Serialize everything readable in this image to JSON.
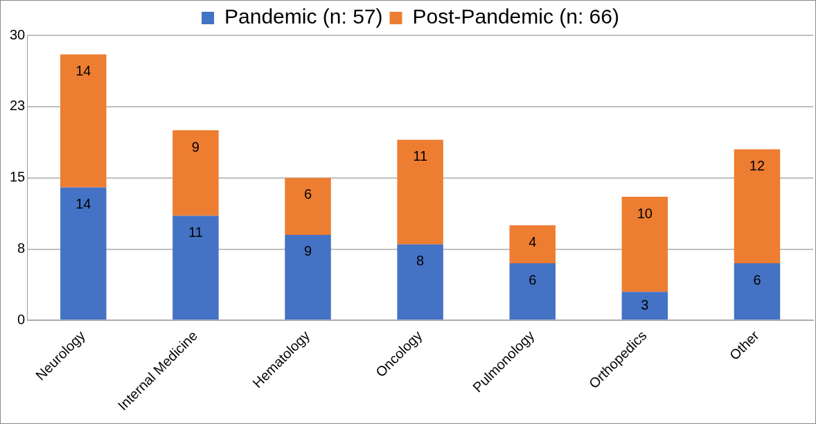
{
  "chart_data": {
    "type": "bar",
    "stacked": true,
    "categories": [
      "Neurology",
      "Internal Medicine",
      "Hematology",
      "Oncology",
      "Pulmonology",
      "Orthopedics",
      "Other"
    ],
    "series": [
      {
        "name": "Pandemic (n: 57)",
        "color": "#4472c4",
        "values": [
          14,
          11,
          9,
          8,
          6,
          3,
          6
        ]
      },
      {
        "name": "Post-Pandemic (n: 66)",
        "color": "#ed7d31",
        "values": [
          14,
          9,
          6,
          11,
          4,
          10,
          12
        ]
      }
    ],
    "ylim": [
      0,
      30
    ],
    "yticks": [
      0,
      {
        "value": 7.5,
        "label": "8"
      },
      15,
      {
        "value": 22.5,
        "label": "23"
      },
      30
    ],
    "grid": "y",
    "legend": "top",
    "data_labels": true
  }
}
